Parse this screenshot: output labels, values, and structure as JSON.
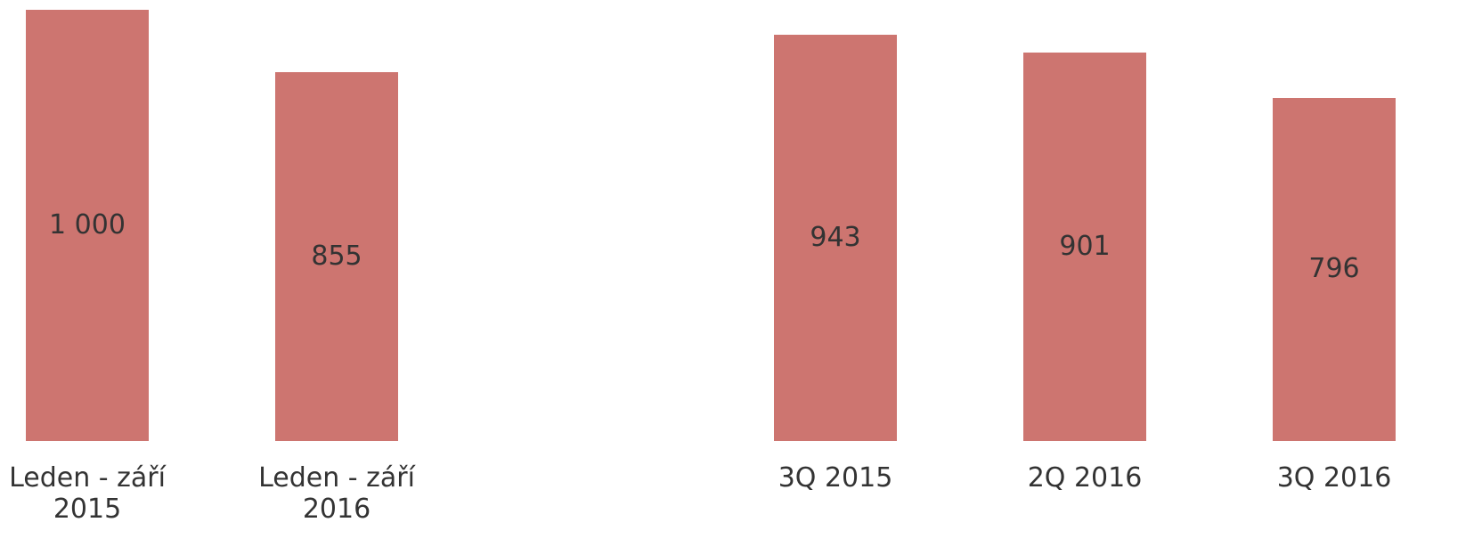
{
  "chart_data": {
    "type": "bar",
    "categories": [
      "Leden - září 2015",
      "Leden - září 2016",
      null,
      "3Q 2015",
      "2Q 2016",
      "3Q 2016"
    ],
    "values": [
      1000,
      855,
      null,
      943,
      901,
      796
    ],
    "value_labels": [
      "1 000",
      "855",
      null,
      "943",
      "901",
      "796"
    ],
    "color": "#cd7570",
    "ylim": [
      0,
      1000
    ]
  }
}
